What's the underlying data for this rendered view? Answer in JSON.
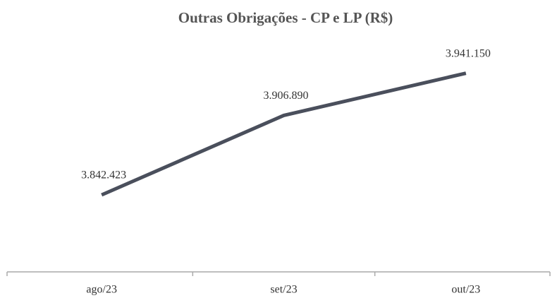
{
  "chart_data": {
    "type": "line",
    "title": "Outras Obrigações - CP e LP (R$)",
    "categories": [
      "ago/23",
      "set/23",
      "out/23"
    ],
    "series": [
      {
        "name": "Outras Obrigações",
        "color": "#4a4f5c",
        "values": [
          3842423,
          3906890,
          3941150
        ],
        "value_labels": [
          "3.842.423",
          "3.906.890",
          "3.941.150"
        ]
      }
    ],
    "ylim": [
      3780000,
      3965000
    ]
  }
}
